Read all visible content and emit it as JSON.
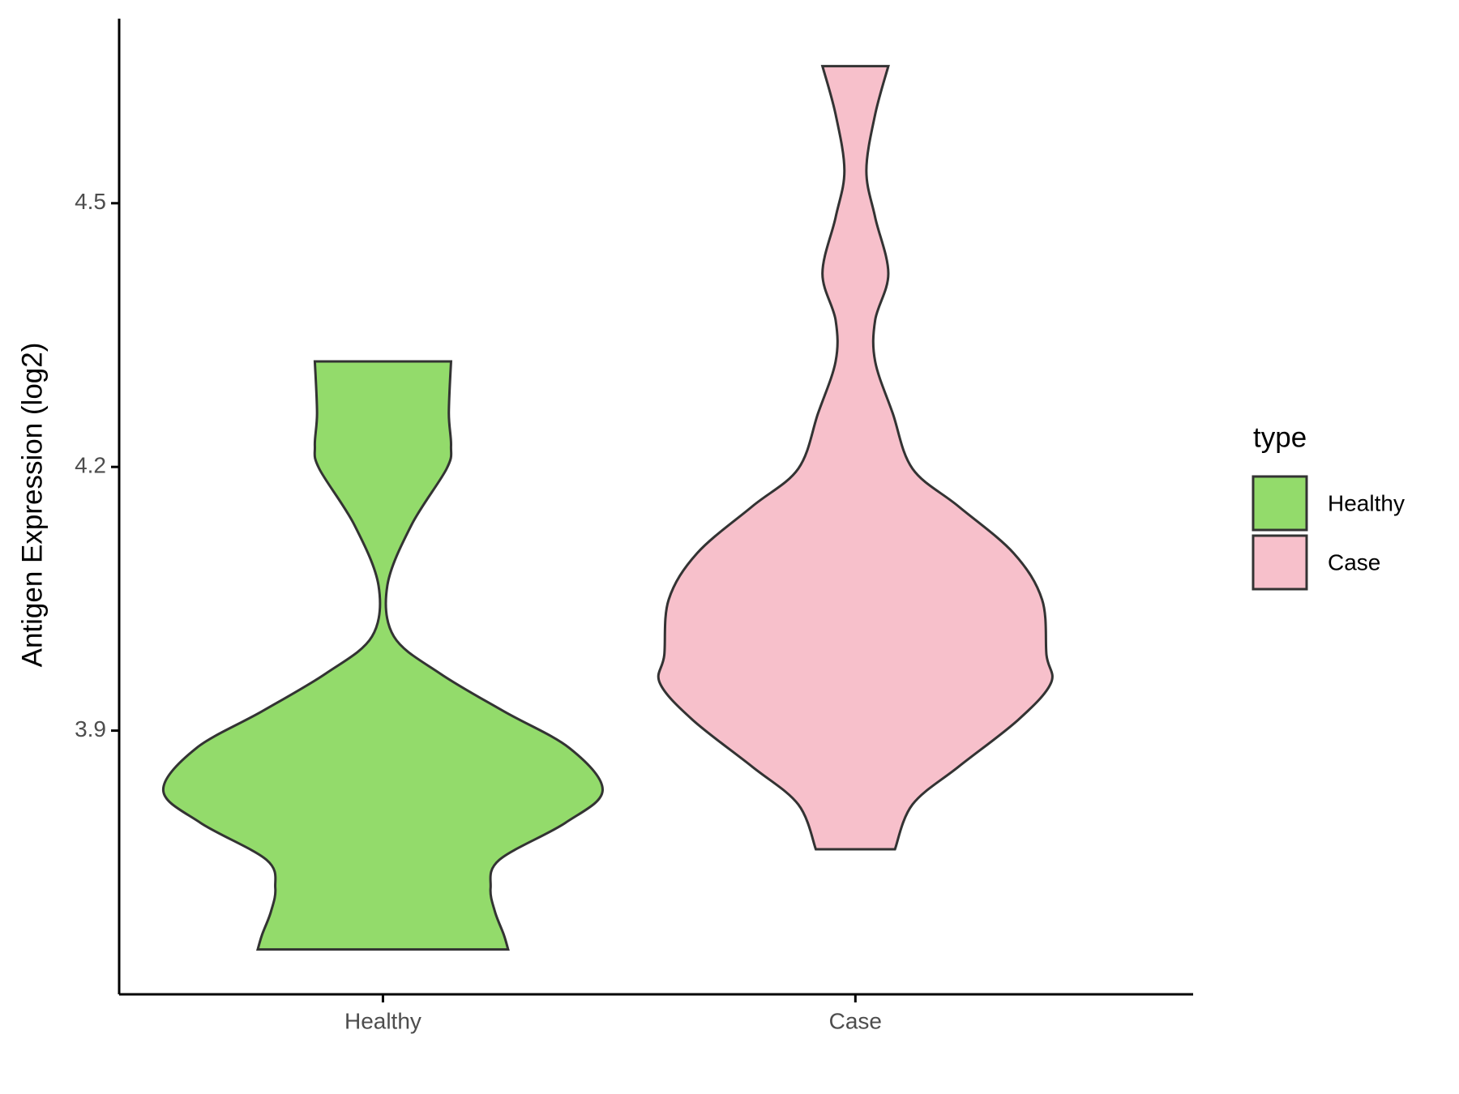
{
  "chart_data": {
    "type": "violin",
    "y_label": "Antigen Expression (log2)",
    "categories": [
      "Healthy",
      "Case"
    ],
    "series": [
      {
        "name": "Healthy",
        "color": "#93DB6B",
        "y": [
          4.32,
          4.261,
          4.224,
          4.198,
          4.134,
          4.065,
          4.007,
          3.965,
          3.922,
          3.88,
          3.832,
          3.795,
          3.753,
          3.721,
          3.694,
          3.668,
          3.651
        ],
        "density": [
          0.31,
          0.3,
          0.31,
          0.29,
          0.13,
          0.02,
          0.05,
          0.26,
          0.55,
          0.85,
          1.0,
          0.83,
          0.53,
          0.49,
          0.51,
          0.55,
          0.57
        ]
      },
      {
        "name": "Case",
        "color": "#F7C0CB",
        "y": [
          4.656,
          4.601,
          4.537,
          4.484,
          4.42,
          4.367,
          4.32,
          4.261,
          4.198,
          4.155,
          4.102,
          4.049,
          3.986,
          3.954,
          3.912,
          3.859,
          3.816,
          3.765
        ],
        "density": [
          0.15,
          0.09,
          0.05,
          0.09,
          0.15,
          0.09,
          0.09,
          0.17,
          0.26,
          0.47,
          0.72,
          0.85,
          0.87,
          0.89,
          0.74,
          0.47,
          0.26,
          0.18
        ]
      }
    ],
    "ylim": [
      3.6,
      4.71
    ],
    "yticks": [
      3.9,
      4.2,
      4.5
    ],
    "legend_title": "type",
    "legend_position": "right"
  }
}
